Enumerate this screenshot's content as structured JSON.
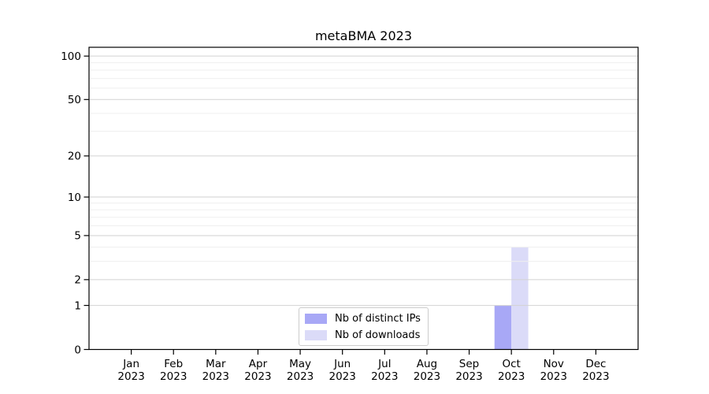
{
  "figure": {
    "background": "#ffffff",
    "text_color": "#000000",
    "spine_color": "#000000"
  },
  "chart_data": {
    "type": "bar",
    "title": "metaBMA 2023",
    "categories": [
      "Jan",
      "Feb",
      "Mar",
      "Apr",
      "May",
      "Jun",
      "Jul",
      "Aug",
      "Sep",
      "Oct",
      "Nov",
      "Dec"
    ],
    "x_year": "2023",
    "series": [
      {
        "name": "Nb of distinct IPs",
        "color": "#a8a8f6",
        "values": [
          0,
          0,
          0,
          0,
          0,
          0,
          0,
          0,
          0,
          1,
          0,
          0
        ]
      },
      {
        "name": "Nb of downloads",
        "color": "#dbdbf8",
        "values": [
          0,
          0,
          0,
          0,
          0,
          0,
          0,
          0,
          0,
          4,
          0,
          0
        ]
      }
    ],
    "y_axis": {
      "scale": "log1p",
      "ticks": [
        0,
        1,
        2,
        5,
        10,
        20,
        50,
        100
      ],
      "minor_gridlines": [
        3,
        4,
        6,
        7,
        8,
        9,
        30,
        40,
        60,
        70,
        80,
        90
      ],
      "ylim": [
        0,
        115
      ]
    },
    "grid": {
      "show": true,
      "major_color": "#d2d2d2",
      "minor_color": "#efefef"
    },
    "legend": {
      "position": "lower-center"
    },
    "bar_width_fraction": 0.4
  }
}
